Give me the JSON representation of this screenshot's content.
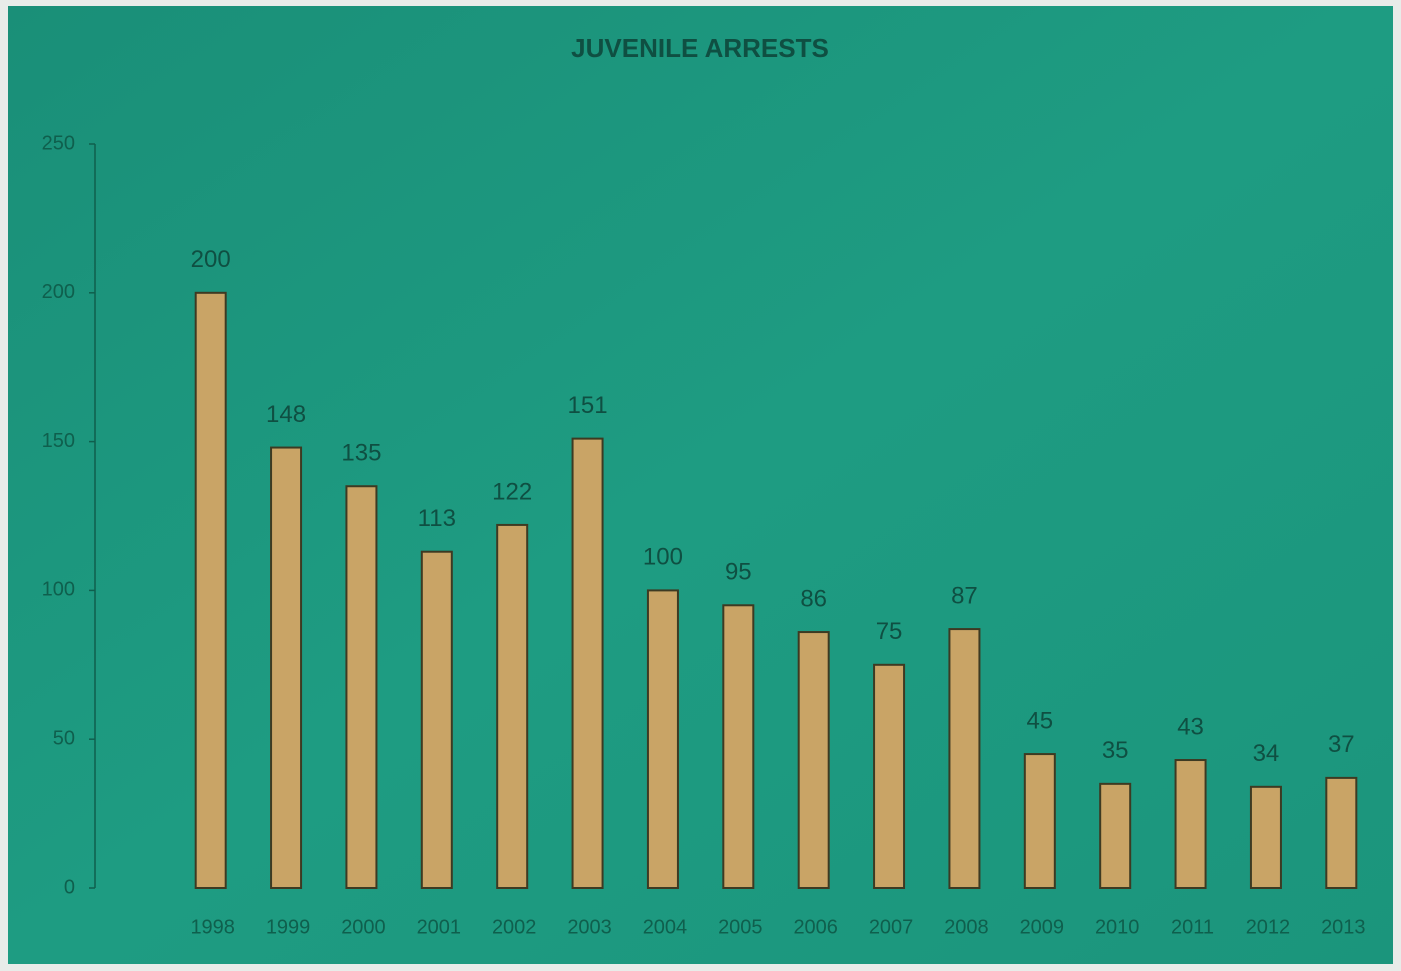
{
  "chart_data": {
    "type": "bar",
    "title": "JUVENILE ARRESTS",
    "categories": [
      "1998",
      "1999",
      "2000",
      "2001",
      "2002",
      "2003",
      "2004",
      "2005",
      "2006",
      "2007",
      "2008",
      "2009",
      "2010",
      "2011",
      "2012",
      "2013"
    ],
    "values": [
      200,
      148,
      135,
      113,
      122,
      151,
      100,
      95,
      86,
      75,
      87,
      45,
      35,
      43,
      34,
      37
    ],
    "color": "#c9a466",
    "ylim": [
      0,
      250
    ],
    "yticks": [
      0,
      50,
      100,
      150,
      200,
      250
    ],
    "grid": false,
    "data_labels": true
  }
}
